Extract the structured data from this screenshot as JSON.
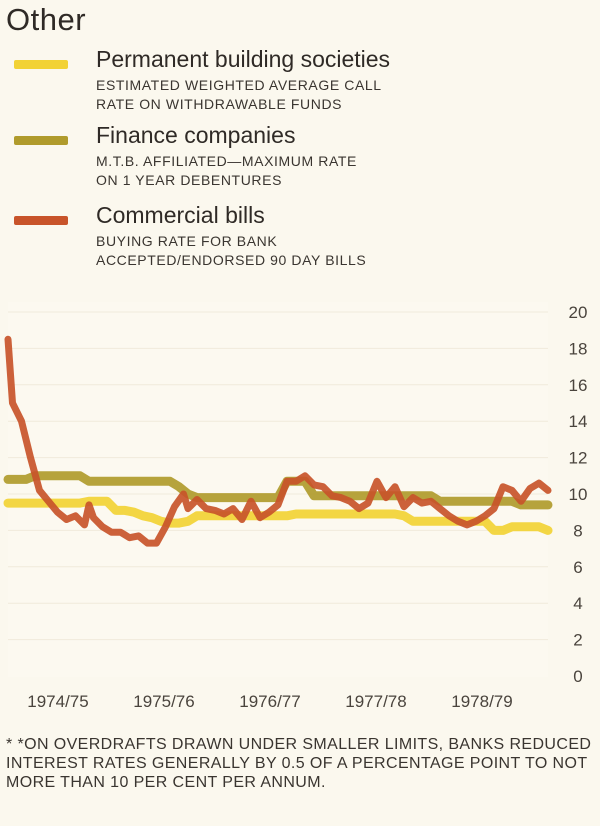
{
  "title": "Other",
  "legend": [
    {
      "name": "Permanent building societies",
      "desc": "ESTIMATED WEIGHTED AVERAGE CALL\nRATE ON WITHDRAWABLE FUNDS",
      "color": "#f2d235"
    },
    {
      "name": "Finance companies",
      "desc": "M.T.B. AFFILIATED—MAXIMUM RATE\nON 1 YEAR DEBENTURES",
      "color": "#b09b2c"
    },
    {
      "name": "Commercial bills",
      "desc": "BUYING RATE FOR BANK\nACCEPTED/ENDORSED 90 DAY BILLS",
      "color": "#c8542a"
    }
  ],
  "chart_data": {
    "type": "line",
    "ylim": [
      0,
      20
    ],
    "yticks": [
      0,
      2,
      4,
      6,
      8,
      10,
      12,
      14,
      16,
      18,
      20
    ],
    "xlim": [
      0,
      60
    ],
    "period_labels": [
      "1974/75",
      "1975/76",
      "1976/77",
      "1977/78",
      "1978/79"
    ],
    "grid": true,
    "series": [
      {
        "name": "Permanent building societies",
        "color": "#f2d235",
        "x": [
          0,
          1,
          2,
          3,
          4,
          5,
          6,
          7,
          8,
          9,
          10,
          11,
          12,
          13,
          14,
          15,
          16,
          17,
          18,
          19,
          20,
          21,
          22,
          23,
          24,
          25,
          26,
          27,
          28,
          29,
          30,
          31,
          32,
          33,
          34,
          35,
          36,
          37,
          38,
          39,
          40,
          41,
          42,
          43,
          44,
          45,
          46,
          47,
          48,
          49,
          50,
          51,
          52,
          53,
          54,
          55,
          56,
          57,
          58,
          59,
          60
        ],
        "values": [
          9.5,
          9.5,
          9.5,
          9.5,
          9.5,
          9.5,
          9.5,
          9.5,
          9.5,
          9.6,
          9.6,
          9.6,
          9.1,
          9.1,
          9.0,
          8.8,
          8.7,
          8.5,
          8.4,
          8.4,
          8.5,
          8.8,
          8.8,
          8.8,
          8.8,
          8.8,
          8.8,
          8.8,
          8.8,
          8.8,
          8.8,
          8.8,
          8.9,
          8.9,
          8.9,
          8.9,
          8.9,
          8.9,
          8.9,
          8.9,
          8.9,
          8.9,
          8.9,
          8.9,
          8.8,
          8.5,
          8.5,
          8.5,
          8.5,
          8.5,
          8.5,
          8.5,
          8.5,
          8.5,
          8.0,
          8.0,
          8.2,
          8.2,
          8.2,
          8.2,
          8.0
        ]
      },
      {
        "name": "Finance companies",
        "color": "#b09b2c",
        "x": [
          0,
          1,
          2,
          3,
          4,
          5,
          6,
          7,
          8,
          9,
          10,
          11,
          12,
          13,
          14,
          15,
          16,
          17,
          18,
          19,
          20,
          21,
          22,
          23,
          24,
          25,
          26,
          27,
          28,
          29,
          30,
          31,
          32,
          33,
          34,
          35,
          36,
          37,
          38,
          39,
          40,
          41,
          42,
          43,
          44,
          45,
          46,
          47,
          48,
          49,
          50,
          51,
          52,
          53,
          54,
          55,
          56,
          57,
          58,
          59,
          60
        ],
        "values": [
          10.8,
          10.8,
          10.8,
          11.0,
          11.0,
          11.0,
          11.0,
          11.0,
          11.0,
          10.7,
          10.7,
          10.7,
          10.7,
          10.7,
          10.7,
          10.7,
          10.7,
          10.7,
          10.7,
          10.4,
          10.0,
          9.8,
          9.8,
          9.8,
          9.8,
          9.8,
          9.8,
          9.8,
          9.8,
          9.8,
          9.8,
          10.7,
          10.7,
          10.7,
          9.9,
          9.9,
          9.9,
          9.9,
          9.9,
          9.9,
          9.9,
          9.9,
          9.9,
          9.9,
          9.9,
          9.9,
          9.9,
          9.9,
          9.6,
          9.6,
          9.6,
          9.6,
          9.6,
          9.6,
          9.6,
          9.6,
          9.6,
          9.4,
          9.4,
          9.4,
          9.4
        ]
      },
      {
        "name": "Commercial bills",
        "color": "#c8542a",
        "x": [
          0,
          0.5,
          1.5,
          2.5,
          3.5,
          4.5,
          5.5,
          6.5,
          7.5,
          8.5,
          9,
          9.5,
          10.5,
          11.5,
          12.5,
          13.5,
          14.5,
          15.5,
          16.5,
          17.5,
          18.5,
          19.5,
          20,
          21,
          22,
          23,
          24,
          25,
          26,
          27,
          28,
          29,
          30,
          31,
          32,
          33,
          34,
          35,
          36,
          37,
          38,
          39,
          40,
          41,
          42,
          43,
          44,
          45,
          46,
          47,
          48,
          49,
          50,
          51,
          52,
          53,
          54,
          55,
          56,
          57,
          58,
          59,
          60
        ],
        "values": [
          18.5,
          15.0,
          14.0,
          12.0,
          10.2,
          9.6,
          9.0,
          8.6,
          8.8,
          8.3,
          9.4,
          8.7,
          8.2,
          7.9,
          7.9,
          7.6,
          7.7,
          7.3,
          7.3,
          8.2,
          9.3,
          10.0,
          9.2,
          9.7,
          9.2,
          9.1,
          8.9,
          9.2,
          8.6,
          9.6,
          8.7,
          9.0,
          9.4,
          10.7,
          10.7,
          11.0,
          10.5,
          10.4,
          9.9,
          9.8,
          9.6,
          9.2,
          9.5,
          10.7,
          9.8,
          10.4,
          9.3,
          9.8,
          9.5,
          9.6,
          9.2,
          8.8,
          8.5,
          8.3,
          8.5,
          8.8,
          9.2,
          10.4,
          10.2,
          9.6,
          10.3,
          10.6,
          10.2
        ]
      }
    ]
  },
  "footnote": "* *ON OVERDRAFTS DRAWN UNDER SMALLER LIMITS, BANKS REDUCED INTEREST RATES GENERALLY BY 0.5 OF A PERCENTAGE POINT TO NOT MORE THAN 10 PER CENT PER ANNUM."
}
